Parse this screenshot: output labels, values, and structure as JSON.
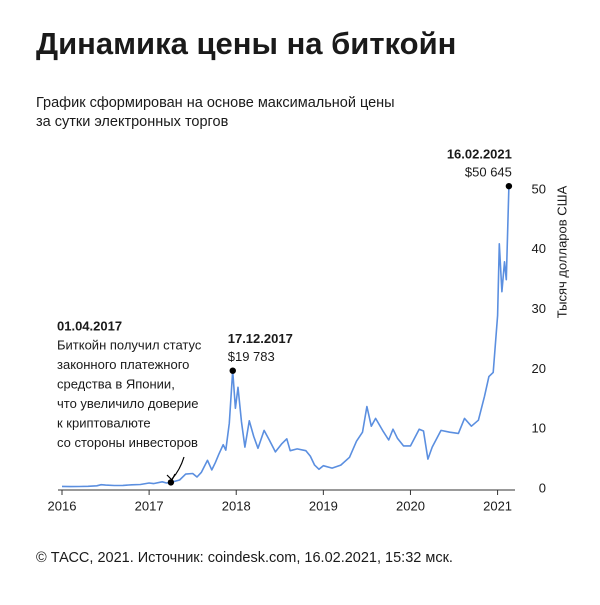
{
  "chart_data": {
    "type": "line",
    "title": "Динамика цены на биткойн",
    "subtitle": [
      "График сформирован на основе максимальной цены",
      "за сутки электронных торгов"
    ],
    "y_axis_label": "Тысяч долларов США",
    "source": "© ТАСС, 2021. Источник: coindesk.com, 16.02.2021, 15:32 мск.",
    "xlim": [
      2016,
      2021.2
    ],
    "xticks": [
      2016,
      2017,
      2018,
      2019,
      2020,
      2021
    ],
    "ylim": [
      0,
      50
    ],
    "yticks": [
      0,
      10,
      20,
      30,
      40,
      50
    ],
    "series": [
      {
        "color": "#5b8fe0",
        "x": [
          2016.0,
          2016.1,
          2016.2,
          2016.3,
          2016.4,
          2016.45,
          2016.5,
          2016.6,
          2016.7,
          2016.8,
          2016.9,
          2017.0,
          2017.05,
          2017.15,
          2017.2,
          2017.25,
          2017.35,
          2017.42,
          2017.5,
          2017.55,
          2017.6,
          2017.67,
          2017.72,
          2017.76,
          2017.8,
          2017.85,
          2017.88,
          2017.92,
          2017.96,
          2017.99,
          2018.02,
          2018.06,
          2018.1,
          2018.15,
          2018.2,
          2018.25,
          2018.32,
          2018.38,
          2018.45,
          2018.52,
          2018.58,
          2018.62,
          2018.7,
          2018.8,
          2018.85,
          2018.9,
          2018.95,
          2019.0,
          2019.1,
          2019.2,
          2019.3,
          2019.38,
          2019.45,
          2019.5,
          2019.55,
          2019.6,
          2019.68,
          2019.75,
          2019.8,
          2019.85,
          2019.92,
          2020.0,
          2020.1,
          2020.15,
          2020.2,
          2020.25,
          2020.35,
          2020.45,
          2020.55,
          2020.62,
          2020.7,
          2020.78,
          2020.85,
          2020.9,
          2020.95,
          2021.0,
          2021.02,
          2021.05,
          2021.08,
          2021.1,
          2021.13
        ],
        "values": [
          0.43,
          0.4,
          0.42,
          0.45,
          0.53,
          0.72,
          0.66,
          0.58,
          0.61,
          0.7,
          0.75,
          1.0,
          0.9,
          1.2,
          1.0,
          1.1,
          1.5,
          2.5,
          2.6,
          2.0,
          2.8,
          4.8,
          3.2,
          4.4,
          5.8,
          7.4,
          6.5,
          11.0,
          19.783,
          13.5,
          17.0,
          11.2,
          7.0,
          11.4,
          8.8,
          6.8,
          9.8,
          8.2,
          6.2,
          7.5,
          8.4,
          6.4,
          6.7,
          6.4,
          5.5,
          4.0,
          3.3,
          3.9,
          3.5,
          4.0,
          5.3,
          8.0,
          9.5,
          13.8,
          10.5,
          11.8,
          9.8,
          8.2,
          10.0,
          8.5,
          7.2,
          7.2,
          10.0,
          9.7,
          5.0,
          7.0,
          9.8,
          9.5,
          9.3,
          11.8,
          10.5,
          11.5,
          15.5,
          18.8,
          19.5,
          29.0,
          41.0,
          33.0,
          38.0,
          35.0,
          50.645
        ]
      }
    ],
    "annotations": [
      {
        "date": "01.04.2017",
        "text": [
          "Биткойн получил статус",
          "законного платежного",
          "средства в Японии,",
          "что увеличило доверие",
          "к криптовалюте",
          "со стороны инвесторов"
        ],
        "x": 2017.25,
        "value": 1.1
      },
      {
        "date": "17.12.2017",
        "label": "$19 783",
        "x": 2017.96,
        "value": 19.783
      },
      {
        "date": "16.02.2021",
        "label": "$50 645",
        "x": 2021.13,
        "value": 50.645
      }
    ]
  }
}
